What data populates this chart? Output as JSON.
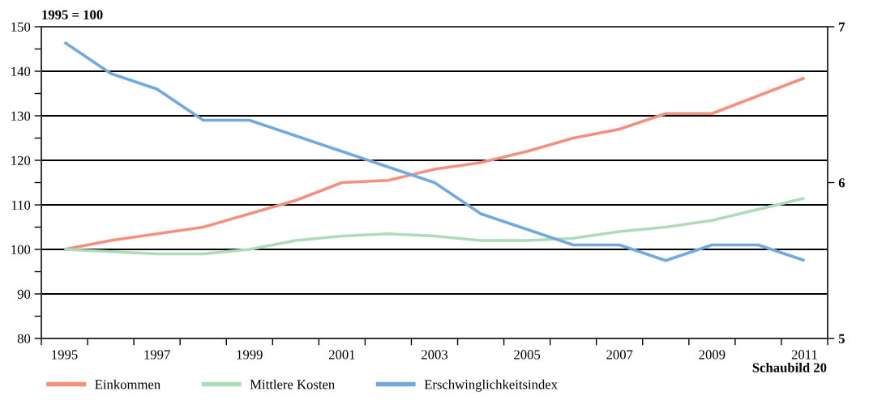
{
  "chart_data": {
    "type": "line",
    "ylabel": "1995 = 100",
    "categories": [
      "1995",
      null,
      "1997",
      null,
      "1999",
      null,
      "2001",
      null,
      "2003",
      null,
      "2005",
      null,
      "2007",
      null,
      "2009",
      null,
      "2011"
    ],
    "series": [
      {
        "name": "Einkommen",
        "color": "#f4907f",
        "values": [
          100,
          102,
          103.5,
          105,
          108,
          111,
          115,
          115.5,
          118,
          119.5,
          122,
          125,
          127,
          130.5,
          130.5,
          134.5,
          138.5
        ]
      },
      {
        "name": "Mittlere Kosten",
        "color": "#acdcb8",
        "values": [
          100,
          99.5,
          99,
          99,
          100,
          102,
          103,
          103.5,
          103,
          102,
          102,
          102.5,
          104,
          105,
          106.5,
          109,
          111.5
        ]
      },
      {
        "name": "Erschwinglichkeitsindex",
        "color": "#72aadf",
        "axis": "y2",
        "values": [
          6.9,
          6.7,
          6.6,
          6.4,
          6.4,
          6.3,
          6.2,
          6.1,
          6.0,
          5.8,
          5.7,
          5.6,
          5.6,
          5.5,
          5.6,
          5.6,
          5.5
        ]
      }
    ],
    "ylim": [
      80,
      150
    ],
    "yticks": [
      80,
      {
        "value": 85,
        "label": null
      },
      90,
      {
        "value": 95,
        "label": null
      },
      100,
      {
        "value": 105,
        "label": null
      },
      110,
      {
        "value": 115,
        "label": null
      },
      120,
      {
        "value": 125,
        "label": null
      },
      130,
      {
        "value": 135,
        "label": null
      },
      140,
      {
        "value": 145,
        "label": null
      },
      150
    ],
    "y2lim": [
      5,
      7
    ],
    "y2ticks": [
      5,
      6,
      7
    ],
    "grid": "y",
    "legend": "bottom",
    "line_style": "solid",
    "annotations": [
      "Schaubild 20"
    ]
  }
}
